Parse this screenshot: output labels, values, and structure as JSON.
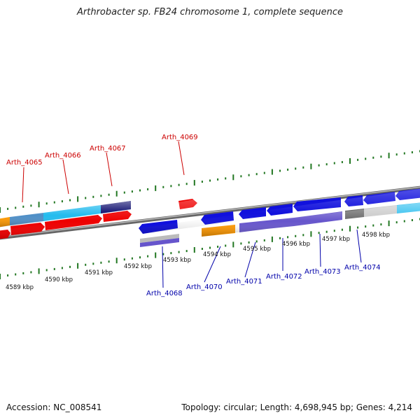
{
  "title": "Arthrobacter sp. FB24 chromosome 1, complete sequence",
  "accession_text": "Accession: NC_008541",
  "summary_text": "Topology: circular; Length: 4,698,945 bp; Genes: 4,214",
  "colors": {
    "forward_label": "#cc0000",
    "reverse_label": "#0000aa",
    "tick": "#227722",
    "backbone": "#888888"
  },
  "scale_labels": [
    "4589 kbp",
    "4590 kbp",
    "4591 kbp",
    "4592 kbp",
    "4593 kbp",
    "4594 kbp",
    "4595 kbp",
    "4596 kbp",
    "4597 kbp",
    "4598 kbp"
  ],
  "gene_labels": [
    {
      "text": "Arth_4065",
      "strand": "forward"
    },
    {
      "text": "Arth_4066",
      "strand": "forward"
    },
    {
      "text": "Arth_4067",
      "strand": "forward"
    },
    {
      "text": "Arth_4069",
      "strand": "forward"
    },
    {
      "text": "Arth_4068",
      "strand": "reverse"
    },
    {
      "text": "Arth_4070",
      "strand": "reverse"
    },
    {
      "text": "Arth_4071",
      "strand": "reverse"
    },
    {
      "text": "Arth_4072",
      "strand": "reverse"
    },
    {
      "text": "Arth_4073",
      "strand": "reverse"
    },
    {
      "text": "Arth_4074",
      "strand": "reverse"
    }
  ]
}
